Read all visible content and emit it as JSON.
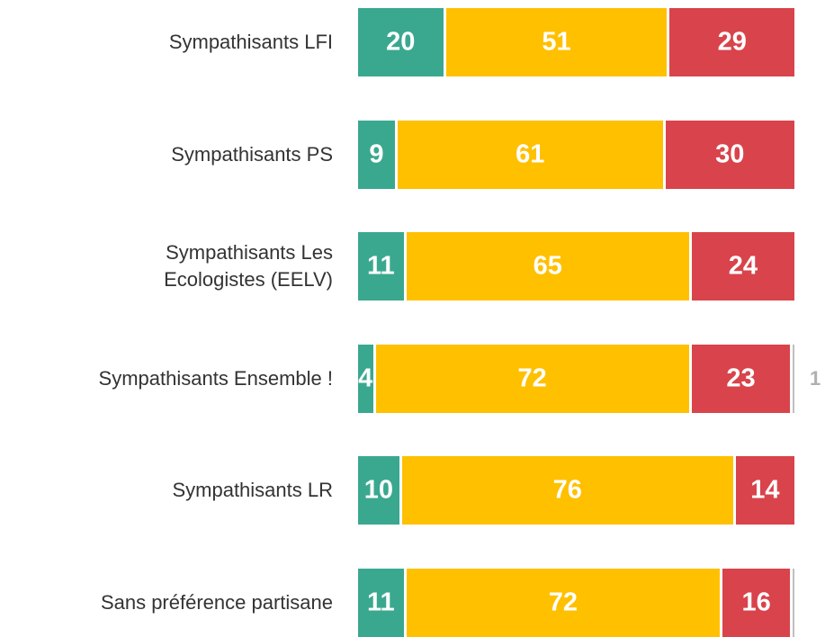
{
  "chart_data": {
    "type": "stacked-bar-horizontal",
    "categories": [
      "Sympathisants LFI",
      "Sympathisants PS",
      "Sympathisants Les\nEcologistes (EELV)",
      "Sympathisants Ensemble !",
      "Sympathisants LR",
      "Sans préférence partisane"
    ],
    "xlim": [
      0,
      100
    ],
    "series": [
      {
        "color": "#3aa88f",
        "values": [
          20,
          9,
          11,
          4,
          10,
          11
        ]
      },
      {
        "color": "#ffc000",
        "values": [
          51,
          61,
          65,
          72,
          76,
          72
        ]
      },
      {
        "color": "#d9434b",
        "values": [
          29,
          30,
          24,
          23,
          14,
          16
        ]
      },
      {
        "color": "#bfbfbf",
        "values": [
          null,
          null,
          null,
          1,
          null,
          1
        ],
        "value_labels": [
          null,
          null,
          null,
          "1",
          null,
          null
        ]
      }
    ]
  }
}
